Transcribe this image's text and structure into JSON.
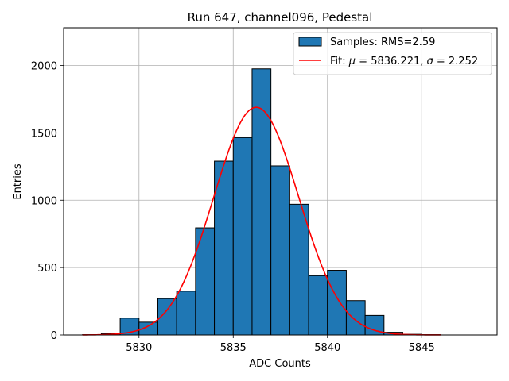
{
  "chart_data": {
    "type": "bar",
    "title": "Run 647, channel096, Pedestal",
    "xlabel": "ADC Counts",
    "ylabel": "Entries",
    "xlim": [
      5826.0,
      5849.0
    ],
    "ylim": [
      0,
      2280
    ],
    "xticks": [
      5830,
      5835,
      5840,
      5845
    ],
    "yticks": [
      0,
      500,
      1000,
      1500,
      2000
    ],
    "grid": true,
    "legend_position": "top-right",
    "bar_color": "#1f77b4",
    "bar_edge_color": "#000000",
    "fit_color": "#ff0000",
    "bins": {
      "start": 5827.0,
      "width": 1.0,
      "values": [
        2,
        10,
        125,
        95,
        270,
        325,
        795,
        1290,
        1465,
        1975,
        1255,
        970,
        440,
        480,
        255,
        145,
        20,
        5,
        2
      ]
    },
    "fit": {
      "mu": 5836.221,
      "sigma": 2.252,
      "amplitude": 1690,
      "x_range": [
        5827.0,
        5846.0
      ]
    },
    "legend": {
      "samples_label": "Samples: RMS=2.59",
      "fit_label_prefix": "Fit: ",
      "mu_symbol": "μ",
      "mu_text": " = 5836.221, ",
      "sigma_symbol": "σ",
      "sigma_text": " = 2.252"
    }
  }
}
